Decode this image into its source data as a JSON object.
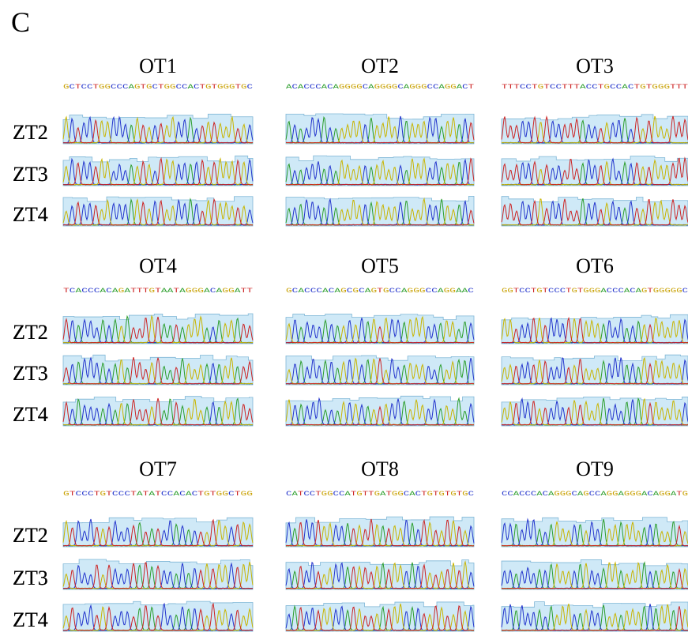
{
  "panel_label": "C",
  "groups": [
    {
      "title": "OT1",
      "sequence": "GCTCCTGGCCCAGTGCTGGCCACTGTGGGTGC",
      "rows": [
        "ZT2",
        "ZT3",
        "ZT4"
      ]
    },
    {
      "title": "OT2",
      "sequence": "ACACCCACAGGGGCAGGGGCAGGGCCAGGACT",
      "rows": [
        "ZT2",
        "ZT3",
        "ZT4"
      ]
    },
    {
      "title": "OT3",
      "sequence": "TTTCCTGTCCTTTACCTGCCACTGTGGGTTT",
      "rows": [
        "ZT2",
        "ZT3",
        "ZT4"
      ]
    },
    {
      "title": "OT4",
      "sequence": "TCACCCACAGATTTGTAATAGGGACAGGATT",
      "rows": [
        "ZT2",
        "ZT3",
        "ZT4"
      ]
    },
    {
      "title": "OT5",
      "sequence": "GCACCCACAGCGCAGTGCCAGGGCCAGGAAC",
      "rows": [
        "ZT2",
        "ZT3",
        "ZT4"
      ]
    },
    {
      "title": "OT6",
      "sequence": "GGTCCTGTCCCTGTGGGACCCACAGTGGGGGC",
      "rows": [
        "ZT2",
        "ZT3",
        "ZT4"
      ]
    },
    {
      "title": "OT7",
      "sequence": "GTCCCTGTCCCTATATCCACACTGTGGCTGG",
      "rows": [
        "ZT2",
        "ZT3",
        "ZT4"
      ]
    },
    {
      "title": "OT8",
      "sequence": "CATCCTGGCCATGTTGATGGCACTGTGTGTGC",
      "rows": [
        "ZT2",
        "ZT3",
        "ZT4"
      ]
    },
    {
      "title": "OT9",
      "sequence": "CCACCCACAGGGCAGCCAGGAGGGACAGGATG",
      "rows": [
        "ZT2",
        "ZT3",
        "ZT4"
      ]
    }
  ]
}
